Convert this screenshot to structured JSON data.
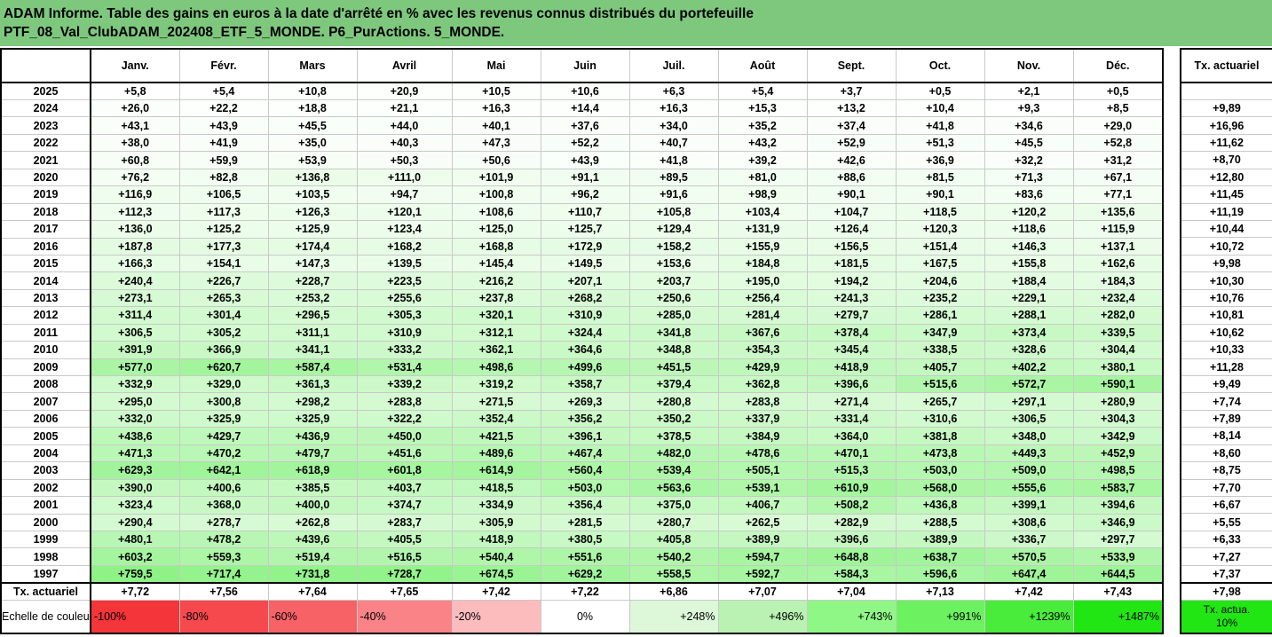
{
  "title": {
    "line1": "ADAM Informe. Table des gains en euros à la date d'arrêté en % avec les revenus connus distribués du portefeuille",
    "line2": "PTF_08_Val_ClubADAM_202408_ETF_5_MONDE. P6_PurActions. 5_MONDE."
  },
  "months": [
    "Janv.",
    "Févr.",
    "Mars",
    "Avril",
    "Mai",
    "Juin",
    "Juil.",
    "Août",
    "Sept.",
    "Oct.",
    "Nov.",
    "Déc."
  ],
  "rate_header": "Tx. actuariel",
  "rows": [
    {
      "year": "2025",
      "values": [
        "+5,8",
        "+5,4",
        "+10,8",
        "+20,9",
        "+10,5",
        "+10,6",
        "+6,3",
        "+5,4",
        "+3,7",
        "+0,5",
        "+2,1",
        "+0,5"
      ],
      "rate": ""
    },
    {
      "year": "2024",
      "values": [
        "+26,0",
        "+22,2",
        "+18,8",
        "+21,1",
        "+16,3",
        "+14,4",
        "+16,3",
        "+15,3",
        "+13,2",
        "+10,4",
        "+9,3",
        "+8,5"
      ],
      "rate": "+9,89"
    },
    {
      "year": "2023",
      "values": [
        "+43,1",
        "+43,9",
        "+45,5",
        "+44,0",
        "+40,1",
        "+37,6",
        "+34,0",
        "+35,2",
        "+37,4",
        "+41,8",
        "+34,6",
        "+29,0"
      ],
      "rate": "+16,96"
    },
    {
      "year": "2022",
      "values": [
        "+38,0",
        "+41,9",
        "+35,0",
        "+40,3",
        "+47,3",
        "+52,2",
        "+40,7",
        "+43,2",
        "+52,9",
        "+51,3",
        "+45,5",
        "+52,8"
      ],
      "rate": "+11,62"
    },
    {
      "year": "2021",
      "values": [
        "+60,8",
        "+59,9",
        "+53,9",
        "+50,3",
        "+50,6",
        "+43,9",
        "+41,8",
        "+39,2",
        "+42,6",
        "+36,9",
        "+32,2",
        "+31,2"
      ],
      "rate": "+8,70"
    },
    {
      "year": "2020",
      "values": [
        "+76,2",
        "+82,8",
        "+136,8",
        "+111,0",
        "+101,9",
        "+91,1",
        "+89,5",
        "+81,0",
        "+88,6",
        "+81,5",
        "+71,3",
        "+67,1"
      ],
      "rate": "+12,80"
    },
    {
      "year": "2019",
      "values": [
        "+116,9",
        "+106,5",
        "+103,5",
        "+94,7",
        "+100,8",
        "+96,2",
        "+91,6",
        "+98,9",
        "+90,1",
        "+90,1",
        "+83,6",
        "+77,1"
      ],
      "rate": "+11,45"
    },
    {
      "year": "2018",
      "values": [
        "+112,3",
        "+117,3",
        "+126,3",
        "+120,1",
        "+108,6",
        "+110,7",
        "+105,8",
        "+103,4",
        "+104,7",
        "+118,5",
        "+120,2",
        "+135,6"
      ],
      "rate": "+11,19"
    },
    {
      "year": "2017",
      "values": [
        "+136,0",
        "+125,2",
        "+125,9",
        "+123,4",
        "+125,0",
        "+125,7",
        "+129,4",
        "+131,9",
        "+126,4",
        "+120,3",
        "+118,6",
        "+115,9"
      ],
      "rate": "+10,44"
    },
    {
      "year": "2016",
      "values": [
        "+187,8",
        "+177,3",
        "+174,4",
        "+168,2",
        "+168,8",
        "+172,9",
        "+158,2",
        "+155,9",
        "+156,5",
        "+151,4",
        "+146,3",
        "+137,1"
      ],
      "rate": "+10,72"
    },
    {
      "year": "2015",
      "values": [
        "+166,3",
        "+154,1",
        "+147,3",
        "+139,5",
        "+145,4",
        "+149,5",
        "+153,6",
        "+184,8",
        "+181,5",
        "+167,5",
        "+155,8",
        "+162,6"
      ],
      "rate": "+9,98"
    },
    {
      "year": "2014",
      "values": [
        "+240,4",
        "+226,7",
        "+228,7",
        "+223,5",
        "+216,2",
        "+207,1",
        "+203,7",
        "+195,0",
        "+194,2",
        "+204,6",
        "+188,4",
        "+184,3"
      ],
      "rate": "+10,30"
    },
    {
      "year": "2013",
      "values": [
        "+273,1",
        "+265,3",
        "+253,2",
        "+255,6",
        "+237,8",
        "+268,2",
        "+250,6",
        "+256,4",
        "+241,3",
        "+235,2",
        "+229,1",
        "+232,4"
      ],
      "rate": "+10,76"
    },
    {
      "year": "2012",
      "values": [
        "+311,4",
        "+301,4",
        "+296,5",
        "+305,3",
        "+320,1",
        "+310,9",
        "+285,0",
        "+281,4",
        "+279,7",
        "+286,1",
        "+288,1",
        "+282,0"
      ],
      "rate": "+10,81"
    },
    {
      "year": "2011",
      "values": [
        "+306,5",
        "+305,2",
        "+311,1",
        "+310,9",
        "+312,1",
        "+324,4",
        "+341,8",
        "+367,6",
        "+378,4",
        "+347,9",
        "+373,4",
        "+339,5"
      ],
      "rate": "+10,62"
    },
    {
      "year": "2010",
      "values": [
        "+391,9",
        "+366,9",
        "+341,1",
        "+333,2",
        "+362,1",
        "+364,6",
        "+348,8",
        "+354,3",
        "+345,4",
        "+338,5",
        "+328,6",
        "+304,4"
      ],
      "rate": "+10,33"
    },
    {
      "year": "2009",
      "values": [
        "+577,0",
        "+620,7",
        "+587,4",
        "+531,4",
        "+498,6",
        "+499,6",
        "+451,5",
        "+429,9",
        "+418,9",
        "+405,7",
        "+402,2",
        "+380,1"
      ],
      "rate": "+11,28"
    },
    {
      "year": "2008",
      "values": [
        "+332,9",
        "+329,0",
        "+361,3",
        "+339,2",
        "+319,2",
        "+358,7",
        "+379,4",
        "+362,8",
        "+396,6",
        "+515,6",
        "+572,7",
        "+590,1"
      ],
      "rate": "+9,49"
    },
    {
      "year": "2007",
      "values": [
        "+295,0",
        "+300,8",
        "+298,2",
        "+283,8",
        "+271,5",
        "+269,3",
        "+280,8",
        "+283,8",
        "+271,4",
        "+265,7",
        "+297,1",
        "+280,9"
      ],
      "rate": "+7,74"
    },
    {
      "year": "2006",
      "values": [
        "+332,0",
        "+325,9",
        "+325,9",
        "+322,2",
        "+352,4",
        "+356,2",
        "+350,2",
        "+337,9",
        "+331,4",
        "+310,6",
        "+306,5",
        "+304,3"
      ],
      "rate": "+7,89"
    },
    {
      "year": "2005",
      "values": [
        "+438,6",
        "+429,7",
        "+436,9",
        "+450,0",
        "+421,5",
        "+396,1",
        "+378,5",
        "+384,9",
        "+364,0",
        "+381,8",
        "+348,0",
        "+342,9"
      ],
      "rate": "+8,14"
    },
    {
      "year": "2004",
      "values": [
        "+471,3",
        "+470,2",
        "+479,7",
        "+451,6",
        "+489,6",
        "+467,4",
        "+482,0",
        "+478,6",
        "+470,1",
        "+473,8",
        "+449,3",
        "+452,9"
      ],
      "rate": "+8,60"
    },
    {
      "year": "2003",
      "values": [
        "+629,3",
        "+642,1",
        "+618,9",
        "+601,8",
        "+614,9",
        "+560,4",
        "+539,4",
        "+505,1",
        "+515,3",
        "+503,0",
        "+509,0",
        "+498,5"
      ],
      "rate": "+8,75"
    },
    {
      "year": "2002",
      "values": [
        "+390,0",
        "+400,6",
        "+385,5",
        "+403,7",
        "+418,5",
        "+503,0",
        "+563,6",
        "+539,1",
        "+610,9",
        "+568,0",
        "+555,6",
        "+583,7"
      ],
      "rate": "+7,70"
    },
    {
      "year": "2001",
      "values": [
        "+323,4",
        "+368,0",
        "+400,0",
        "+374,7",
        "+334,9",
        "+356,4",
        "+375,0",
        "+406,7",
        "+508,2",
        "+436,8",
        "+399,1",
        "+394,6"
      ],
      "rate": "+6,67"
    },
    {
      "year": "2000",
      "values": [
        "+290,4",
        "+278,7",
        "+262,8",
        "+283,7",
        "+305,9",
        "+281,5",
        "+280,7",
        "+262,5",
        "+282,9",
        "+288,5",
        "+308,6",
        "+346,9"
      ],
      "rate": "+5,55"
    },
    {
      "year": "1999",
      "values": [
        "+480,1",
        "+478,2",
        "+439,6",
        "+405,5",
        "+418,9",
        "+380,5",
        "+405,8",
        "+389,9",
        "+396,6",
        "+389,9",
        "+336,7",
        "+297,7"
      ],
      "rate": "+6,33"
    },
    {
      "year": "1998",
      "values": [
        "+603,2",
        "+559,3",
        "+519,4",
        "+516,5",
        "+540,4",
        "+551,6",
        "+540,2",
        "+594,7",
        "+648,8",
        "+638,7",
        "+570,5",
        "+533,9"
      ],
      "rate": "+7,27"
    },
    {
      "year": "1997",
      "values": [
        "+759,5",
        "+717,4",
        "+731,8",
        "+728,7",
        "+674,5",
        "+629,2",
        "+558,5",
        "+592,7",
        "+584,3",
        "+596,6",
        "+647,4",
        "+644,5"
      ],
      "rate": "+7,37"
    }
  ],
  "average_row": {
    "label": "Tx. actuariel",
    "values": [
      "+7,72",
      "+7,56",
      "+7,64",
      "+7,65",
      "+7,42",
      "+7,22",
      "+6,86",
      "+7,07",
      "+7,04",
      "+7,13",
      "+7,42",
      "+7,43"
    ],
    "rate": "+7,98"
  },
  "color_scale": {
    "label": "Echelle de couleur",
    "steps": [
      {
        "text": "-100%",
        "color": "#f4353a"
      },
      {
        "text": "-80%",
        "color": "#f5494d"
      },
      {
        "text": "-60%",
        "color": "#f76266"
      },
      {
        "text": "-40%",
        "color": "#f98387"
      },
      {
        "text": "-20%",
        "color": "#fcbcbe"
      },
      {
        "text": "0%",
        "color": "#ffffff"
      },
      {
        "text": "+248%",
        "color": "#dcf8d8"
      },
      {
        "text": "+496%",
        "color": "#b9f2b2"
      },
      {
        "text": "+743%",
        "color": "#8ff786"
      },
      {
        "text": "+991%",
        "color": "#6cf260"
      },
      {
        "text": "+1239%",
        "color": "#49ec3b"
      },
      {
        "text": "+1487%",
        "color": "#22e613"
      }
    ],
    "rate_label": "Tx. actua. 10%",
    "rate_color": "#22e613"
  },
  "colors": {
    "title_bg": "#7ec87e",
    "scale_max_value": 1487
  }
}
